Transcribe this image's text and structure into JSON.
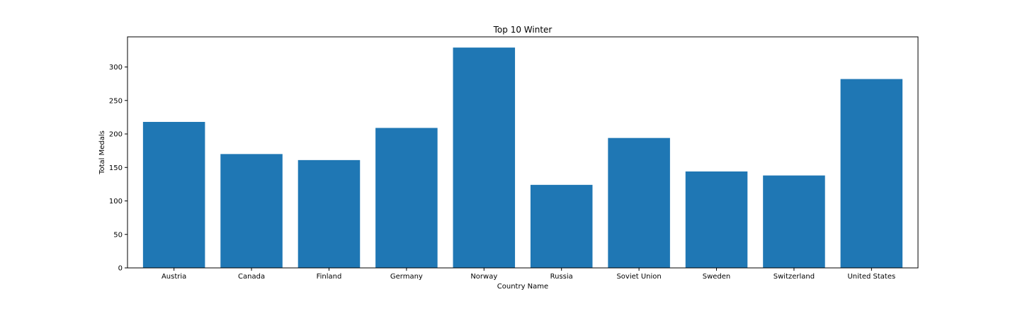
{
  "chart_data": {
    "type": "bar",
    "title": "Top 10 Winter",
    "xlabel": "Country Name",
    "ylabel": "Total Medals",
    "categories": [
      "Austria",
      "Canada",
      "Finland",
      "Germany",
      "Norway",
      "Russia",
      "Soviet Union",
      "Sweden",
      "Switzerland",
      "United States"
    ],
    "values": [
      218,
      170,
      161,
      209,
      329,
      124,
      194,
      144,
      138,
      282
    ],
    "ylim": [
      0,
      345
    ],
    "yticks": [
      0,
      50,
      100,
      150,
      200,
      250,
      300
    ],
    "ytick_labels": [
      "0",
      "50",
      "100",
      "150",
      "200",
      "250",
      "300"
    ],
    "bar_color": "#1f77b4",
    "grid": false
  }
}
